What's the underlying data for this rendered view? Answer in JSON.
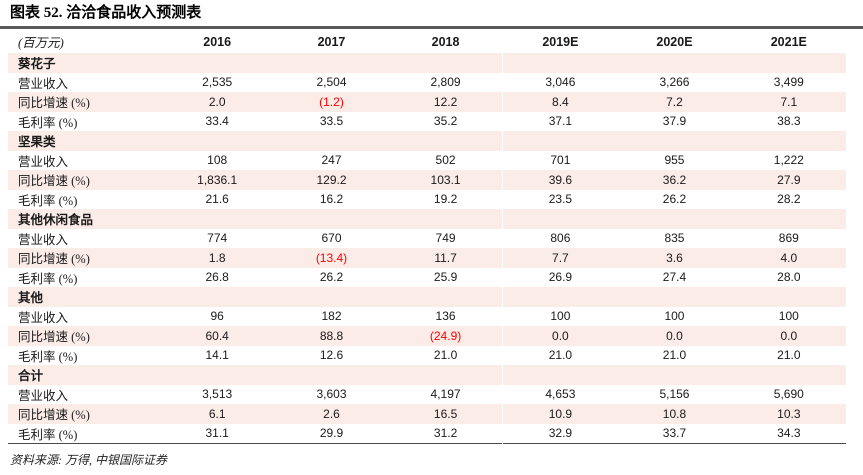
{
  "title": "图表 52. 洽洽食品收入预测表",
  "table": {
    "unit_label": "(百万元)",
    "year_columns": [
      "2016",
      "2017",
      "2018",
      "2019E",
      "2020E",
      "2021E"
    ],
    "estimate_columns_start_index": 3,
    "sections": [
      {
        "name": "葵花子",
        "rows": [
          {
            "label": "营业收入",
            "values": [
              "2,535",
              "2,504",
              "2,809",
              "3,046",
              "3,266",
              "3,499"
            ]
          },
          {
            "label": "同比增速 (%)",
            "values": [
              "2.0",
              "(1.2)",
              "12.2",
              "8.4",
              "7.2",
              "7.1"
            ]
          },
          {
            "label": "毛利率 (%)",
            "values": [
              "33.4",
              "33.5",
              "35.2",
              "37.1",
              "37.9",
              "38.3"
            ]
          }
        ]
      },
      {
        "name": "坚果类",
        "rows": [
          {
            "label": "营业收入",
            "values": [
              "108",
              "247",
              "502",
              "701",
              "955",
              "1,222"
            ]
          },
          {
            "label": "同比增速 (%)",
            "values": [
              "1,836.1",
              "129.2",
              "103.1",
              "39.6",
              "36.2",
              "27.9"
            ]
          },
          {
            "label": "毛利率 (%)",
            "values": [
              "21.6",
              "16.2",
              "19.2",
              "23.5",
              "26.2",
              "28.2"
            ]
          }
        ]
      },
      {
        "name": "其他休闲食品",
        "rows": [
          {
            "label": "营业收入",
            "values": [
              "774",
              "670",
              "749",
              "806",
              "835",
              "869"
            ]
          },
          {
            "label": "同比增速 (%)",
            "values": [
              "1.8",
              "(13.4)",
              "11.7",
              "7.7",
              "3.6",
              "4.0"
            ]
          },
          {
            "label": "毛利率 (%)",
            "values": [
              "26.8",
              "26.2",
              "25.9",
              "26.9",
              "27.4",
              "28.0"
            ]
          }
        ]
      },
      {
        "name": "其他",
        "rows": [
          {
            "label": "营业收入",
            "values": [
              "96",
              "182",
              "136",
              "100",
              "100",
              "100"
            ]
          },
          {
            "label": "同比增速 (%)",
            "values": [
              "60.4",
              "88.8",
              "(24.9)",
              "0.0",
              "0.0",
              "0.0"
            ]
          },
          {
            "label": "毛利率 (%)",
            "values": [
              "14.1",
              "12.6",
              "21.0",
              "21.0",
              "21.0",
              "21.0"
            ]
          }
        ]
      },
      {
        "name": "合计",
        "rows": [
          {
            "label": "营业收入",
            "values": [
              "3,513",
              "3,603",
              "4,197",
              "4,653",
              "5,156",
              "5,690"
            ]
          },
          {
            "label": "同比增速 (%)",
            "values": [
              "6.1",
              "2.6",
              "16.5",
              "10.9",
              "10.8",
              "10.3"
            ]
          },
          {
            "label": "毛利率 (%)",
            "values": [
              "31.1",
              "29.9",
              "31.2",
              "32.9",
              "33.7",
              "34.3"
            ]
          }
        ]
      }
    ]
  },
  "source": "资料来源: 万得, 中银国际证券",
  "colors": {
    "stripe": "#fbece8",
    "negative": "#ff0000",
    "rule_dark": "#595959",
    "text": "#1a1a1a"
  }
}
